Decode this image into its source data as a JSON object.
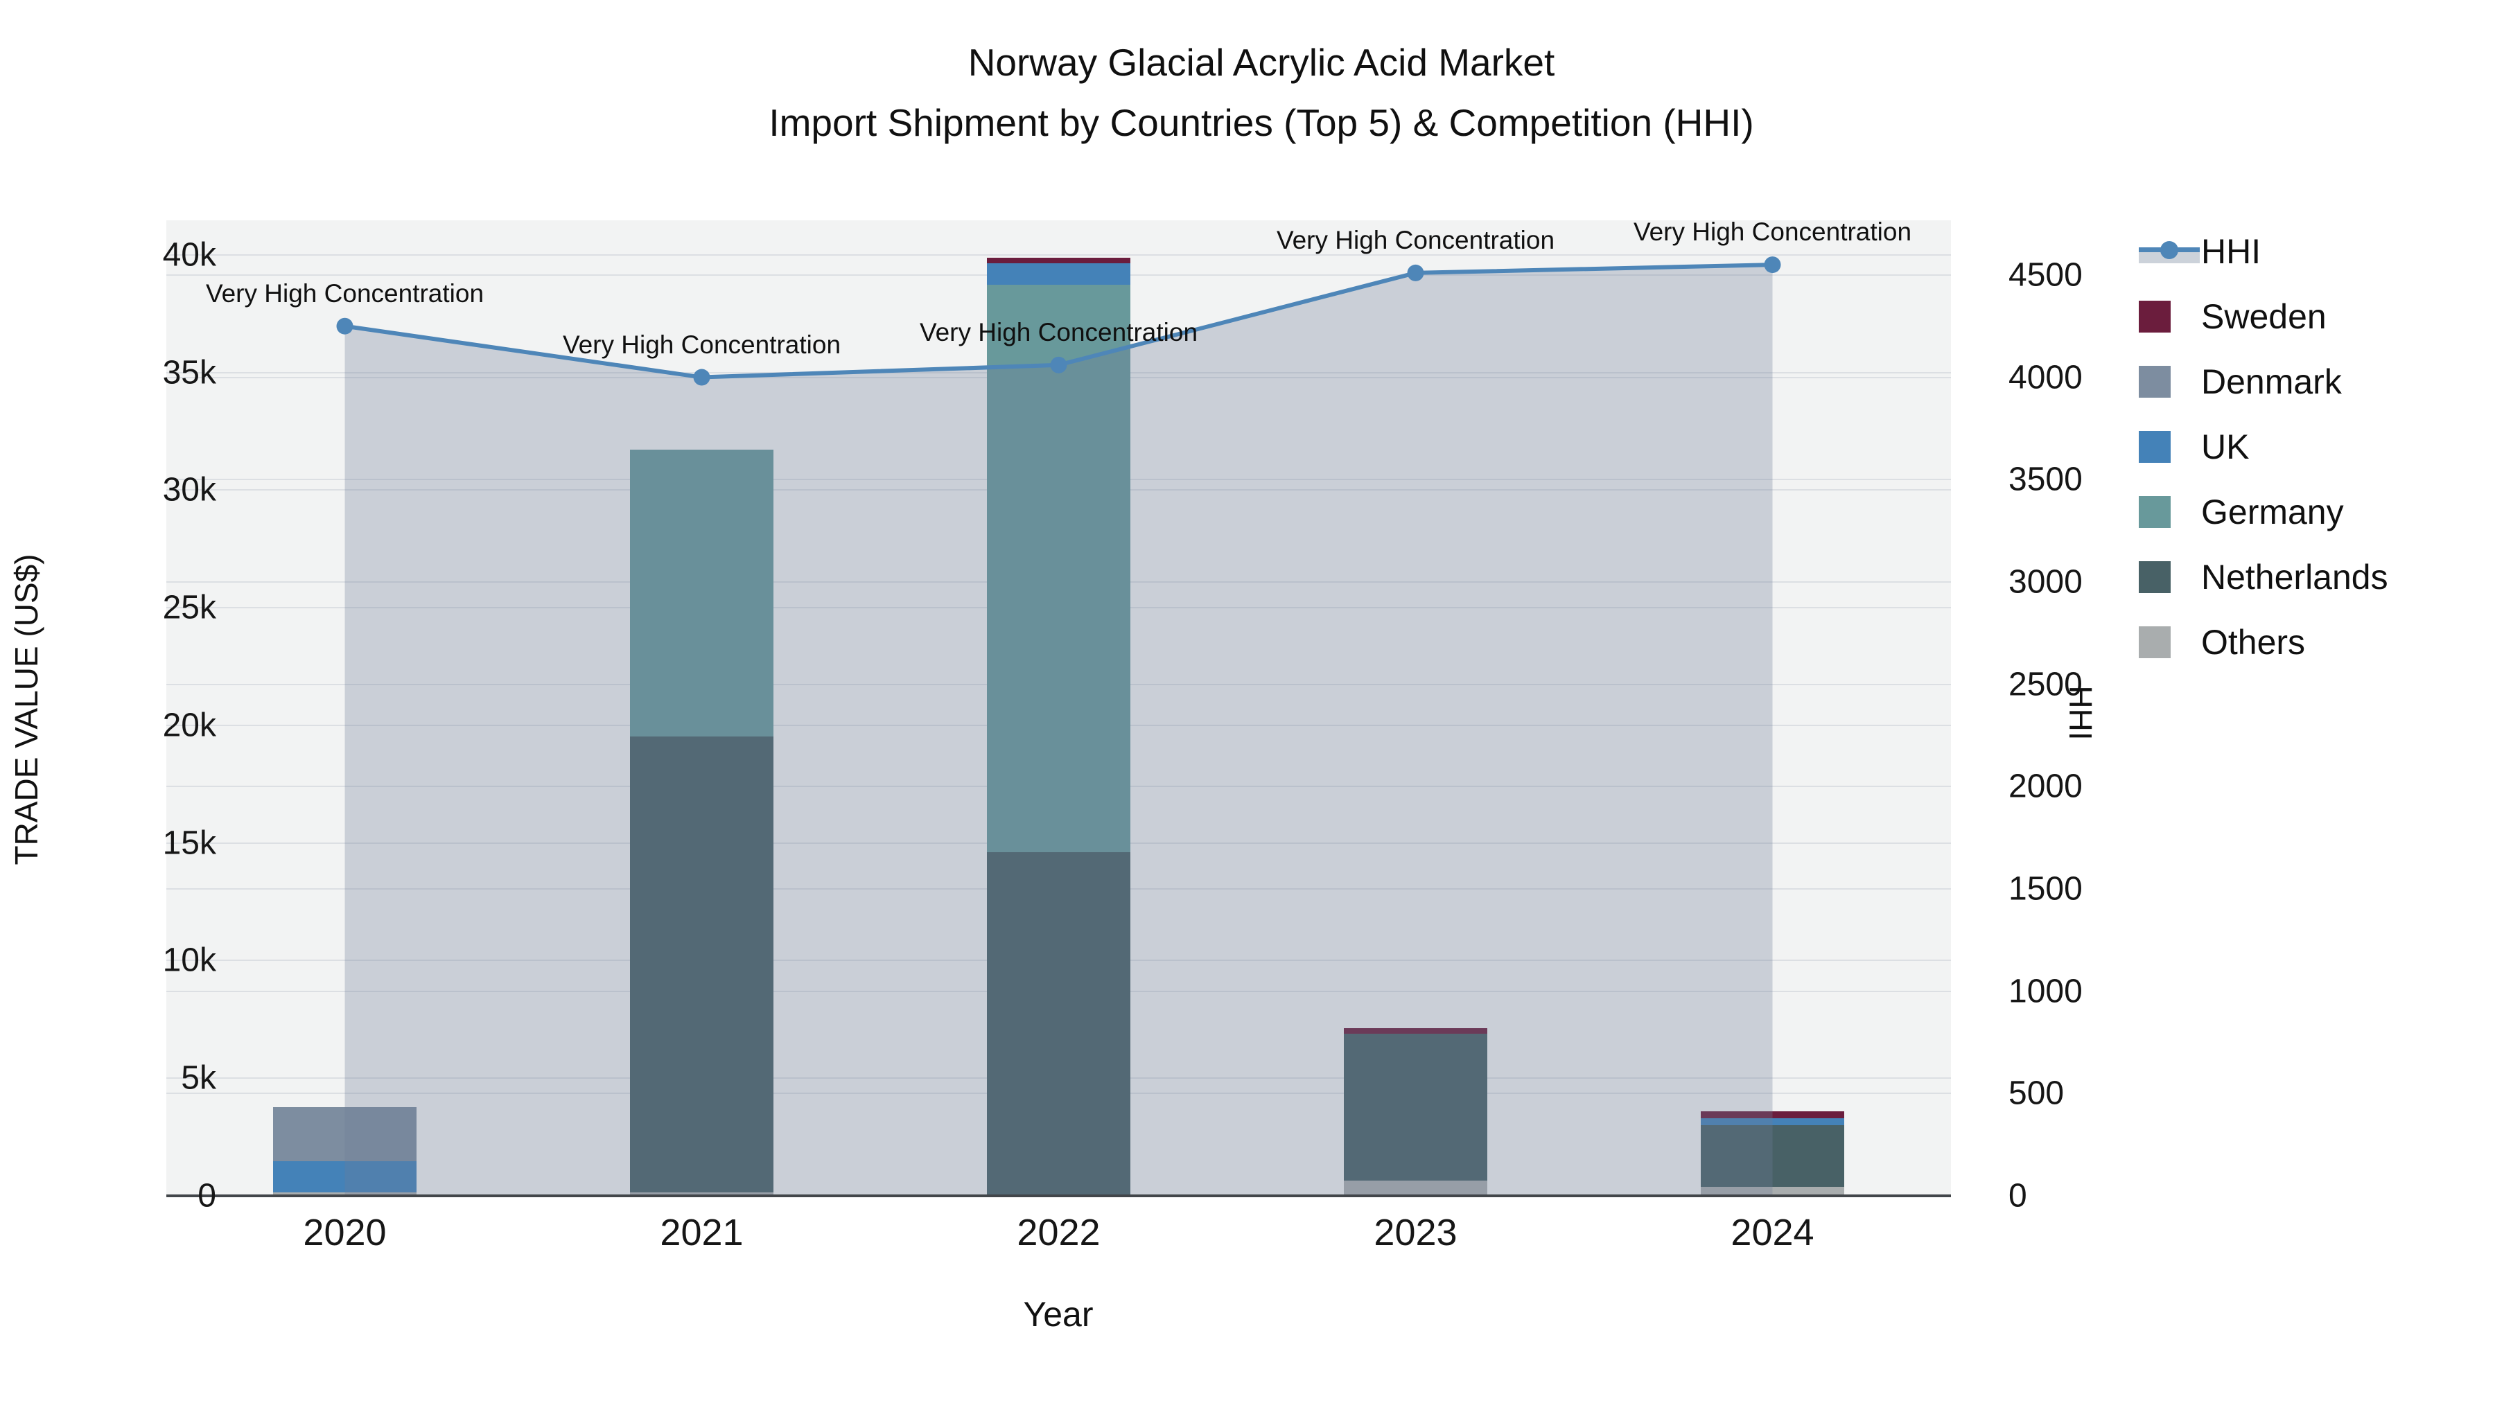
{
  "title": {
    "line1": "Norway Glacial Acrylic Acid Market",
    "line2": "Import Shipment by Countries (Top 5) & Competition (HHI)"
  },
  "axes": {
    "x_title": "Year",
    "y_left_title": "TRADE VALUE (US$)",
    "y_right_title": "HHI",
    "left_ticks": [
      {
        "value": 0,
        "label": "0"
      },
      {
        "value": 5000,
        "label": "5k"
      },
      {
        "value": 10000,
        "label": "10k"
      },
      {
        "value": 15000,
        "label": "15k"
      },
      {
        "value": 20000,
        "label": "20k"
      },
      {
        "value": 25000,
        "label": "25k"
      },
      {
        "value": 30000,
        "label": "30k"
      },
      {
        "value": 35000,
        "label": "35k"
      },
      {
        "value": 40000,
        "label": "40k"
      }
    ],
    "right_ticks": [
      {
        "value": 0,
        "label": "0"
      },
      {
        "value": 500,
        "label": "500"
      },
      {
        "value": 1000,
        "label": "1000"
      },
      {
        "value": 1500,
        "label": "1500"
      },
      {
        "value": 2000,
        "label": "2000"
      },
      {
        "value": 2500,
        "label": "2500"
      },
      {
        "value": 3000,
        "label": "3000"
      },
      {
        "value": 3500,
        "label": "3500"
      },
      {
        "value": 4000,
        "label": "4000"
      },
      {
        "value": 4500,
        "label": "4500"
      }
    ]
  },
  "legend": {
    "items": [
      {
        "label": "HHI",
        "type": "line",
        "color": "#4e86b8"
      },
      {
        "label": "Sweden",
        "type": "square",
        "color": "#6b1d3d"
      },
      {
        "label": "Denmark",
        "type": "square",
        "color": "#7d8da0"
      },
      {
        "label": "UK",
        "type": "square",
        "color": "#4482b8"
      },
      {
        "label": "Germany",
        "type": "square",
        "color": "#68999b"
      },
      {
        "label": "Netherlands",
        "type": "square",
        "color": "#486166"
      },
      {
        "label": "Others",
        "type": "square",
        "color": "#a9adae"
      }
    ]
  },
  "chart_data": {
    "type": "combo-stacked-bar-line",
    "categories": [
      "2020",
      "2021",
      "2022",
      "2023",
      "2024"
    ],
    "bar_unit": "US$",
    "ylabel": "TRADE VALUE (US$)",
    "y2label": "HHI",
    "ylim": [
      0,
      41465
    ],
    "y2lim": [
      0,
      4767
    ],
    "grid": true,
    "legend_position": "right",
    "series": [
      {
        "name": "Others",
        "color": "#a9adae",
        "values": [
          150,
          150,
          0,
          650,
          380
        ]
      },
      {
        "name": "Netherlands",
        "color": "#486166",
        "values": [
          0,
          19380,
          14610,
          6240,
          2620
        ]
      },
      {
        "name": "Germany",
        "color": "#68999b",
        "values": [
          0,
          12190,
          24120,
          0,
          0
        ]
      },
      {
        "name": "UK",
        "color": "#4482b8",
        "values": [
          1320,
          0,
          910,
          0,
          290
        ]
      },
      {
        "name": "Denmark",
        "color": "#7d8da0",
        "values": [
          2300,
          0,
          0,
          0,
          0
        ]
      },
      {
        "name": "Sweden",
        "color": "#6b1d3d",
        "values": [
          0,
          0,
          240,
          240,
          290
        ]
      }
    ],
    "bar_totals": [
      3770,
      31720,
      39880,
      7130,
      3580
    ],
    "line_series": {
      "name": "HHI",
      "axis": "right",
      "color": "#4e86b8",
      "area_fill": "rgba(110,127,153,0.30)",
      "values": [
        4250,
        4000,
        4060,
        4510,
        4550
      ]
    },
    "point_annotations": [
      "Very High Concentration",
      "Very High Concentration",
      "Very High Concentration",
      "Very High Concentration",
      "Very High Concentration"
    ]
  }
}
